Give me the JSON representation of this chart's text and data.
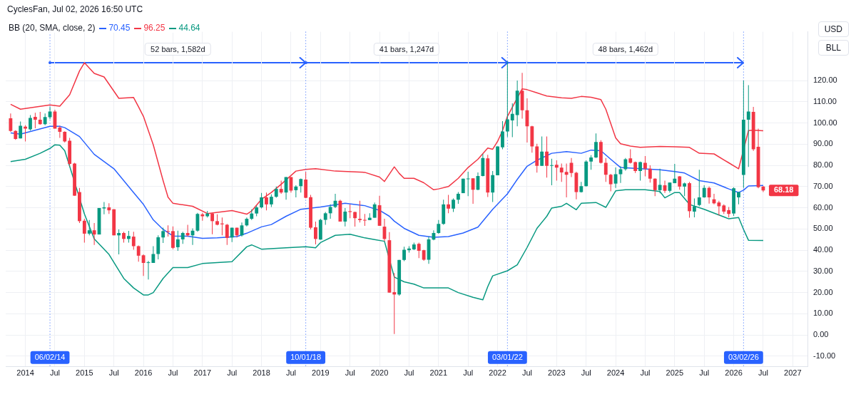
{
  "chart_data": {
    "type": "candlestick",
    "title": "CyclesFan, Jul 02, 2026 16:50 UTC",
    "legend_title": "BB (20, SMA, close, 2)",
    "legend": "top left",
    "grid": true,
    "x": [
      "2013-10",
      "2013-11",
      "2013-12",
      "2014-01",
      "2014-02",
      "2014-03",
      "2014-04",
      "2014-05",
      "2014-06",
      "2014-07",
      "2014-08",
      "2014-09",
      "2014-10",
      "2014-11",
      "2014-12",
      "2015-01",
      "2015-02",
      "2015-03",
      "2015-04",
      "2015-05",
      "2015-06",
      "2015-07",
      "2015-08",
      "2015-09",
      "2015-10",
      "2015-11",
      "2015-12",
      "2016-01",
      "2016-02",
      "2016-03",
      "2016-04",
      "2016-05",
      "2016-06",
      "2016-07",
      "2016-08",
      "2016-09",
      "2016-10",
      "2016-11",
      "2016-12",
      "2017-01",
      "2017-02",
      "2017-03",
      "2017-04",
      "2017-05",
      "2017-06",
      "2017-07",
      "2017-08",
      "2017-09",
      "2017-10",
      "2017-11",
      "2017-12",
      "2018-01",
      "2018-02",
      "2018-03",
      "2018-04",
      "2018-05",
      "2018-06",
      "2018-07",
      "2018-08",
      "2018-09",
      "2018-10",
      "2018-11",
      "2018-12",
      "2019-01",
      "2019-02",
      "2019-03",
      "2019-04",
      "2019-05",
      "2019-06",
      "2019-07",
      "2019-08",
      "2019-09",
      "2019-10",
      "2019-11",
      "2019-12",
      "2020-01",
      "2020-02",
      "2020-03",
      "2020-04",
      "2020-05",
      "2020-06",
      "2020-07",
      "2020-08",
      "2020-09",
      "2020-10",
      "2020-11",
      "2020-12",
      "2021-01",
      "2021-02",
      "2021-03",
      "2021-04",
      "2021-05",
      "2021-06",
      "2021-07",
      "2021-08",
      "2021-09",
      "2021-10",
      "2021-11",
      "2021-12",
      "2022-01",
      "2022-02",
      "2022-03",
      "2022-04",
      "2022-05",
      "2022-06",
      "2022-07",
      "2022-08",
      "2022-09",
      "2022-10",
      "2022-11",
      "2022-12",
      "2023-01",
      "2023-02",
      "2023-03",
      "2023-04",
      "2023-05",
      "2023-06",
      "2023-07",
      "2023-08",
      "2023-09",
      "2023-10",
      "2023-11",
      "2023-12",
      "2024-01",
      "2024-02",
      "2024-03",
      "2024-04",
      "2024-05",
      "2024-06",
      "2024-07",
      "2024-08",
      "2024-09",
      "2024-10",
      "2024-11",
      "2024-12",
      "2025-01",
      "2025-02",
      "2025-03",
      "2025-04",
      "2025-05",
      "2025-06",
      "2025-07",
      "2025-08",
      "2025-09",
      "2025-10",
      "2025-11",
      "2025-12",
      "2026-01",
      "2026-02",
      "2026-03",
      "2026-04",
      "2026-05",
      "2026-06",
      "2026-07"
    ],
    "ohlc": [
      [
        102.2,
        104.5,
        95.8,
        96.2
      ],
      [
        96.2,
        96.6,
        92,
        92.5
      ],
      [
        92.7,
        100.7,
        92.7,
        98.7
      ],
      [
        98.3,
        98.9,
        91.3,
        97.3
      ],
      [
        97,
        103.7,
        96.4,
        102.4
      ],
      [
        102.9,
        104.8,
        97.5,
        101.5
      ],
      [
        101.5,
        105.2,
        99.2,
        99.4
      ],
      [
        99.4,
        104.5,
        98.9,
        102.8
      ],
      [
        102.7,
        107.6,
        101.7,
        105.4
      ],
      [
        105.4,
        106.2,
        97.3,
        97.3
      ],
      [
        97.8,
        98.7,
        93,
        95.8
      ],
      [
        95.8,
        96.1,
        90.8,
        91.3
      ],
      [
        91.6,
        93,
        79.8,
        80.7
      ],
      [
        80.9,
        81.2,
        65.7,
        65.7
      ],
      [
        67.4,
        69.4,
        52.8,
        53.7
      ],
      [
        53.9,
        54.8,
        43.6,
        47.8
      ],
      [
        47.8,
        54.2,
        47,
        49.4
      ],
      [
        49.4,
        52.8,
        42.5,
        47.4
      ],
      [
        47.4,
        59.9,
        47.4,
        59.9
      ],
      [
        59.7,
        62.7,
        56.9,
        60.2
      ],
      [
        60.2,
        62.1,
        57.1,
        58.8
      ],
      [
        59.3,
        59.3,
        47,
        47
      ],
      [
        47,
        49.8,
        38,
        48.1
      ],
      [
        48.1,
        48.7,
        43.6,
        45.3
      ],
      [
        45.3,
        49.1,
        43.6,
        46.7
      ],
      [
        46.4,
        48.7,
        40.2,
        41.9
      ],
      [
        41.9,
        42.2,
        34.6,
        37.4
      ],
      [
        37.6,
        38,
        27.9,
        34
      ],
      [
        34,
        35,
        26.2,
        34.3
      ],
      [
        34,
        41.9,
        34,
        38.2
      ],
      [
        38.2,
        47,
        35.7,
        46.1
      ],
      [
        46,
        50.6,
        43.4,
        49
      ],
      [
        49,
        51.7,
        46.4,
        48.7
      ],
      [
        49,
        51.2,
        40.5,
        41.1
      ],
      [
        41.4,
        49.2,
        39.7,
        45.1
      ],
      [
        45.1,
        48.7,
        43,
        48.1
      ],
      [
        48.1,
        52,
        46.4,
        47
      ],
      [
        47,
        50.3,
        42.5,
        49.2
      ],
      [
        49.2,
        57.6,
        48.7,
        57.1
      ],
      [
        56.9,
        57.6,
        53.9,
        56
      ],
      [
        56,
        58.5,
        55.4,
        57.3
      ],
      [
        57.3,
        57.6,
        47.5,
        53.7
      ],
      [
        53.7,
        56.9,
        51.7,
        52
      ],
      [
        52.6,
        55.4,
        47,
        52.2
      ],
      [
        52,
        52.4,
        42.5,
        45.8
      ],
      [
        46,
        50.6,
        43.8,
        50.6
      ],
      [
        50.6,
        50.6,
        46,
        47
      ],
      [
        47,
        53.1,
        46.4,
        51.7
      ],
      [
        51.7,
        55.4,
        51.2,
        54.8
      ],
      [
        54.8,
        59.3,
        54.2,
        57.3
      ],
      [
        57.3,
        61,
        56,
        60.2
      ],
      [
        60.2,
        67,
        59.7,
        64.9
      ],
      [
        64.9,
        67.2,
        58.8,
        61.6
      ],
      [
        61.6,
        66.3,
        60.4,
        65.2
      ],
      [
        65.2,
        70,
        64.7,
        68.9
      ],
      [
        68.9,
        72.8,
        66.6,
        67.2
      ],
      [
        67.2,
        74.5,
        63.8,
        74.5
      ],
      [
        74.5,
        74.5,
        67.2,
        68.1
      ],
      [
        68.3,
        70.6,
        64.9,
        70
      ],
      [
        70.2,
        73.8,
        67.2,
        73.6
      ],
      [
        73.3,
        76.9,
        64.5,
        64.7
      ],
      [
        65,
        66.1,
        49.8,
        50.6
      ],
      [
        50.8,
        53.5,
        42.7,
        45.3
      ],
      [
        45,
        54.8,
        44.9,
        54.3
      ],
      [
        54.3,
        58,
        52,
        57.4
      ],
      [
        57.4,
        61.6,
        54.8,
        60.4
      ],
      [
        60.4,
        66.6,
        59.9,
        63.3
      ],
      [
        63.3,
        63.8,
        53.5,
        53.5
      ],
      [
        53.5,
        59.9,
        51.2,
        58.2
      ],
      [
        58.4,
        61.6,
        55.1,
        58
      ],
      [
        58,
        58.2,
        51.1,
        55.1
      ],
      [
        54.8,
        63.3,
        53.1,
        54.2
      ],
      [
        54.3,
        57.1,
        51.5,
        54.2
      ],
      [
        54.2,
        57.4,
        54.2,
        55.3
      ],
      [
        55.3,
        62.5,
        55.3,
        61.6
      ],
      [
        61.2,
        65.7,
        51.5,
        51.5
      ],
      [
        51.1,
        54.8,
        44.2,
        45.3
      ],
      [
        44.7,
        48.5,
        20,
        20
      ],
      [
        20.2,
        29.2,
        0.5,
        19.1
      ],
      [
        19.1,
        35.4,
        18.5,
        35.4
      ],
      [
        35.4,
        41.6,
        34.8,
        40.2
      ],
      [
        40,
        41.9,
        38.9,
        40.8
      ],
      [
        40.4,
        43.6,
        40,
        42.7
      ],
      [
        43,
        43.6,
        36.3,
        39.7
      ],
      [
        40,
        40.2,
        35,
        35.5
      ],
      [
        35.5,
        46.4,
        33.6,
        45.1
      ],
      [
        45,
        49.4,
        44.7,
        48.1
      ],
      [
        48.1,
        54.2,
        47.8,
        52.4
      ],
      [
        52.4,
        63.8,
        52,
        61.6
      ],
      [
        61.6,
        66.1,
        57.4,
        59.6
      ],
      [
        59.6,
        64.4,
        58,
        63.8
      ],
      [
        63.8,
        67.4,
        61.9,
        66.6
      ],
      [
        66.9,
        73.7,
        66.9,
        73.7
      ],
      [
        73.6,
        77,
        65.5,
        73.8
      ],
      [
        73.9,
        73.9,
        61.9,
        68.5
      ],
      [
        68.5,
        76.7,
        68.3,
        75
      ],
      [
        75,
        85.4,
        74.8,
        83.5
      ],
      [
        83.3,
        85,
        65.1,
        67.2
      ],
      [
        67.2,
        77.3,
        62.7,
        75.4
      ],
      [
        75.3,
        88.9,
        75.3,
        88.9
      ],
      [
        88.5,
        100.9,
        87.6,
        96
      ],
      [
        96,
        129,
        93.5,
        101.7
      ],
      [
        101.2,
        109.3,
        93.3,
        104.3
      ],
      [
        103.7,
        120,
        98.4,
        115.2
      ],
      [
        115.2,
        123.6,
        102,
        106
      ],
      [
        106,
        111.6,
        90.8,
        98.4
      ],
      [
        98.4,
        98.7,
        86,
        88.9
      ],
      [
        88.9,
        90.2,
        76.6,
        79.8
      ],
      [
        79.8,
        93.6,
        79.8,
        86.5
      ],
      [
        86.5,
        93.6,
        74.2,
        79.8
      ],
      [
        79.8,
        83.1,
        70.6,
        80.1
      ],
      [
        80.3,
        82.4,
        72.8,
        78.9
      ],
      [
        78.9,
        80.9,
        72.2,
        76.7
      ],
      [
        76.9,
        80.9,
        64.9,
        75.6
      ],
      [
        81.2,
        83.5,
        74.5,
        76.4
      ],
      [
        76.5,
        77,
        64,
        67.4
      ],
      [
        67.4,
        72.2,
        67.2,
        70.2
      ],
      [
        70.2,
        82.4,
        70,
        81.8
      ],
      [
        81.8,
        84.8,
        77.9,
        83.7
      ],
      [
        83.7,
        95.1,
        83.5,
        91
      ],
      [
        91,
        91.9,
        80.9,
        81.2
      ],
      [
        81.2,
        83.5,
        72.2,
        75.6
      ],
      [
        75.6,
        76,
        67.8,
        71.1
      ],
      [
        71.4,
        79,
        69.4,
        75.8
      ],
      [
        75.8,
        79.6,
        71.7,
        78.2
      ],
      [
        78.2,
        83.5,
        77.5,
        82.9
      ],
      [
        83.3,
        87.6,
        80.9,
        81.2
      ],
      [
        81.5,
        81.8,
        76.4,
        77.3
      ],
      [
        77.3,
        81.8,
        72.8,
        81.5
      ],
      [
        81.2,
        84.4,
        74.8,
        78.4
      ],
      [
        78.4,
        80,
        71.9,
        73.7
      ],
      [
        73.7,
        73.9,
        65.5,
        68.3
      ],
      [
        68.3,
        78.4,
        66.8,
        70.8
      ],
      [
        70.6,
        72.8,
        67,
        68
      ],
      [
        68,
        71.9,
        67.2,
        71.9
      ],
      [
        71.6,
        80.7,
        71.6,
        73.7
      ],
      [
        74.8,
        75,
        68.5,
        70
      ],
      [
        70,
        71.9,
        65.5,
        71.5
      ],
      [
        71.6,
        72.2,
        55.3,
        58.4
      ],
      [
        58.2,
        64.4,
        55.5,
        60.7
      ],
      [
        61.3,
        77.9,
        60.7,
        64.9
      ],
      [
        64.9,
        70.6,
        64.7,
        69.4
      ],
      [
        69.4,
        70,
        62,
        64.9
      ],
      [
        64,
        66.6,
        61.6,
        62.1
      ],
      [
        62.5,
        63.3,
        56.4,
        60.7
      ],
      [
        61.1,
        61.6,
        57.1,
        58.2
      ],
      [
        58.9,
        60.4,
        55.4,
        57.1
      ],
      [
        57.3,
        69.7,
        56.2,
        69.2
      ],
      [
        64.9,
        67.4,
        61.6,
        67.4
      ],
      [
        75.5,
        120,
        69.4,
        101.5
      ],
      [
        101.5,
        117.8,
        79.3,
        105.4
      ],
      [
        105.2,
        107.6,
        86.8,
        87.6
      ],
      [
        88.8,
        97.3,
        69.2,
        69.7
      ],
      [
        70,
        70.3,
        67.4,
        68.18
      ]
    ],
    "colors": [
      "#f23645",
      "#f23645",
      "#089981",
      "#f23645",
      "#089981",
      "#f23645",
      "#f23645",
      "#089981",
      "#089981",
      "#f23645",
      "#f23645",
      "#f23645",
      "#f23645",
      "#f23645",
      "#f23645",
      "#f23645",
      "#089981",
      "#f23645",
      "#089981",
      "#089981",
      "#f23645",
      "#f23645",
      "#089981",
      "#f23645",
      "#089981",
      "#f23645",
      "#f23645",
      "#f23645",
      "#089981",
      "#089981",
      "#089981",
      "#089981",
      "#f23645",
      "#f23645",
      "#089981",
      "#089981",
      "#f23645",
      "#089981",
      "#089981",
      "#f23645",
      "#089981",
      "#f23645",
      "#f23645",
      "#f23645",
      "#f23645",
      "#089981",
      "#f23645",
      "#089981",
      "#089981",
      "#089981",
      "#089981",
      "#089981",
      "#f23645",
      "#089981",
      "#089981",
      "#f23645",
      "#089981",
      "#f23645",
      "#089981",
      "#089981",
      "#f23645",
      "#f23645",
      "#f23645",
      "#089981",
      "#089981",
      "#089981",
      "#089981",
      "#f23645",
      "#089981",
      "#f23645",
      "#f23645",
      "#f23645",
      "#f23645",
      "#089981",
      "#089981",
      "#f23645",
      "#f23645",
      "#f23645",
      "#f23645",
      "#089981",
      "#089981",
      "#089981",
      "#089981",
      "#f23645",
      "#f23645",
      "#089981",
      "#089981",
      "#089981",
      "#089981",
      "#f23645",
      "#089981",
      "#089981",
      "#089981",
      "#089981",
      "#f23645",
      "#089981",
      "#089981",
      "#f23645",
      "#089981",
      "#089981",
      "#089981",
      "#089981",
      "#089981",
      "#089981",
      "#f23645",
      "#f23645",
      "#f23645",
      "#f23645",
      "#089981",
      "#f23645",
      "#089981",
      "#f23645",
      "#f23645",
      "#f23645",
      "#f23645",
      "#f23645",
      "#089981",
      "#089981",
      "#089981",
      "#089981",
      "#f23645",
      "#f23645",
      "#f23645",
      "#089981",
      "#089981",
      "#089981",
      "#f23645",
      "#f23645",
      "#089981",
      "#f23645",
      "#f23645",
      "#f23645",
      "#089981",
      "#f23645",
      "#089981",
      "#089981",
      "#f23645",
      "#089981",
      "#f23645",
      "#089981",
      "#089981",
      "#089981",
      "#f23645",
      "#f23645",
      "#f23645",
      "#f23645",
      "#f23645",
      "#089981",
      "#089981",
      "#089981",
      "#089981",
      "#f23645",
      "#f23645",
      "#f23645"
    ],
    "series": [
      {
        "type": "line",
        "name": "70.45",
        "color": "#2962ff",
        "x": [
          "2013-10",
          "2013-12",
          "2014-03",
          "2014-06",
          "2014-08",
          "2014-09",
          "2014-12",
          "2015-03",
          "2015-07",
          "2015-11",
          "2016-01",
          "2016-03",
          "2016-05",
          "2016-07",
          "2016-10",
          "2017-01",
          "2017-04",
          "2017-08",
          "2017-10",
          "2018-01",
          "2018-03",
          "2018-06",
          "2018-09",
          "2019-01",
          "2019-06",
          "2019-10",
          "2020-01",
          "2020-03",
          "2020-04",
          "2020-06",
          "2020-09",
          "2020-12",
          "2021-03",
          "2021-06",
          "2021-09",
          "2021-12",
          "2022-03",
          "2022-05",
          "2022-07",
          "2022-09",
          "2022-12",
          "2023-03",
          "2023-06",
          "2023-08",
          "2023-10",
          "2023-12",
          "2024-02",
          "2024-06",
          "2024-10",
          "2025-01",
          "2025-03",
          "2025-06",
          "2025-09",
          "2025-12",
          "2026-02",
          "2026-03",
          "2026-04",
          "2026-07"
        ],
        "values": [
          95.3,
          94.7,
          96.6,
          98.4,
          98.4,
          97.8,
          93.6,
          85.2,
          78.4,
          67.2,
          61.6,
          54.3,
          49.8,
          46.7,
          46.6,
          45.6,
          45.8,
          46.4,
          48,
          51,
          52.1,
          56,
          59.3,
          60.4,
          62.1,
          61,
          58.8,
          56,
          53.7,
          50.3,
          47,
          46.1,
          46.4,
          48.1,
          50.9,
          59.3,
          66.6,
          73.4,
          79.6,
          82.4,
          85.7,
          86.5,
          85.7,
          87.2,
          86.9,
          82.9,
          79,
          78.4,
          77.9,
          77.1,
          76.4,
          72.8,
          71.7,
          68.9,
          67.2,
          68.3,
          70.3,
          70.5
        ]
      },
      {
        "type": "line",
        "name": "96.25",
        "color": "#f23645",
        "x": [
          "2013-10",
          "2013-12",
          "2014-06",
          "2014-08",
          "2014-10",
          "2014-12",
          "2015-01",
          "2015-03",
          "2015-05",
          "2015-08",
          "2015-11",
          "2015-12",
          "2016-01",
          "2016-03",
          "2016-05",
          "2016-06",
          "2016-07",
          "2016-11",
          "2017-02",
          "2017-07",
          "2017-10",
          "2017-11",
          "2018-01",
          "2018-03",
          "2018-05",
          "2018-08",
          "2018-10",
          "2018-12",
          "2019-04",
          "2019-10",
          "2020-01",
          "2020-02",
          "2020-04",
          "2020-05",
          "2020-06",
          "2020-08",
          "2020-10",
          "2020-12",
          "2021-01",
          "2021-03",
          "2021-05",
          "2021-07",
          "2021-09",
          "2021-11",
          "2021-12",
          "2022-01",
          "2022-02",
          "2022-03",
          "2022-06",
          "2022-07",
          "2022-09",
          "2022-11",
          "2023-02",
          "2023-04",
          "2023-06",
          "2023-08",
          "2023-10",
          "2023-11",
          "2023-12",
          "2024-01",
          "2024-02",
          "2024-04",
          "2024-06",
          "2024-10",
          "2025-01",
          "2025-04",
          "2025-06",
          "2025-09",
          "2025-12",
          "2026-02",
          "2026-04",
          "2026-05",
          "2026-07"
        ],
        "values": [
          108.8,
          106.5,
          108.5,
          107.9,
          113.3,
          124.5,
          128.4,
          123.4,
          121.7,
          111.6,
          112,
          107.6,
          103.1,
          89.7,
          72.8,
          65,
          62.1,
          60.7,
          57.3,
          58.7,
          57,
          58.5,
          64,
          67.2,
          71.1,
          77.3,
          78.1,
          78.4,
          77.3,
          76.7,
          74.5,
          72.4,
          79.3,
          76.2,
          73.9,
          73.9,
          71.8,
          68.5,
          68.9,
          70,
          73.9,
          79,
          82.9,
          88.2,
          87.6,
          91.3,
          96.4,
          103.1,
          116.1,
          115.7,
          114.2,
          112.7,
          111.9,
          111.6,
          112.5,
          112.1,
          111,
          106.5,
          99.8,
          93,
          90.2,
          89.1,
          88.5,
          88.9,
          88.8,
          88.5,
          85.7,
          85.4,
          81.2,
          78.4,
          96.4,
          96.6,
          96.3
        ]
      },
      {
        "type": "line",
        "name": "44.64",
        "color": "#089981",
        "x": [
          "2013-10",
          "2014-01",
          "2014-04",
          "2014-06",
          "2014-07",
          "2014-08",
          "2014-09",
          "2014-10",
          "2015-01",
          "2015-03",
          "2015-06",
          "2015-09",
          "2015-11",
          "2016-01",
          "2016-02",
          "2016-03",
          "2016-05",
          "2016-07",
          "2016-10",
          "2017-01",
          "2017-07",
          "2017-10",
          "2017-11",
          "2018-01",
          "2018-06",
          "2018-10",
          "2018-12",
          "2019-01",
          "2019-04",
          "2019-07",
          "2019-10",
          "2019-12",
          "2020-02",
          "2020-04",
          "2020-06",
          "2020-08",
          "2020-10",
          "2021-03",
          "2021-05",
          "2021-08",
          "2021-10",
          "2021-11",
          "2021-12",
          "2022-03",
          "2022-05",
          "2022-07",
          "2022-09",
          "2022-11",
          "2022-12",
          "2023-02",
          "2023-03",
          "2023-05",
          "2023-06",
          "2023-09",
          "2023-11",
          "2024-01",
          "2024-03",
          "2024-07",
          "2024-10",
          "2024-11",
          "2025-01",
          "2025-02",
          "2025-04",
          "2025-07",
          "2025-12",
          "2026-02",
          "2026-03",
          "2026-04",
          "2026-07"
        ],
        "values": [
          81.8,
          82.9,
          85.7,
          88,
          89.7,
          89.5,
          86.9,
          79.6,
          57.1,
          45.3,
          38,
          26.7,
          22.2,
          18.9,
          18.9,
          20,
          26.7,
          31.8,
          31.8,
          33.7,
          34.6,
          41.6,
          42.5,
          40.5,
          41.1,
          41.6,
          41.1,
          43.6,
          47,
          47.5,
          45.8,
          45,
          44.2,
          27.3,
          25.1,
          24,
          22.2,
          22.2,
          20,
          17.8,
          16.6,
          22.8,
          27.9,
          30.3,
          33.1,
          41.3,
          50.3,
          56,
          59.9,
          60.7,
          62.1,
          59.1,
          62.1,
          62.5,
          60.2,
          68,
          68.5,
          68.5,
          67.7,
          64.7,
          67.2,
          67.2,
          61.6,
          59.3,
          54.8,
          55.4,
          49.8,
          44.7,
          44.6
        ]
      }
    ],
    "xlim": [
      "2013-09",
      "2027-04"
    ],
    "xticks": [
      {
        "value": "2014-01",
        "label": "2014"
      },
      {
        "value": "2014-07",
        "label": "Jul"
      },
      {
        "value": "2015-01",
        "label": "2015"
      },
      {
        "value": "2015-07",
        "label": "Jul"
      },
      {
        "value": "2016-01",
        "label": "2016"
      },
      {
        "value": "2016-07",
        "label": "Jul"
      },
      {
        "value": "2017-01",
        "label": "2017"
      },
      {
        "value": "2017-07",
        "label": "Jul"
      },
      {
        "value": "2018-01",
        "label": "2018"
      },
      {
        "value": "2018-07",
        "label": "Jul"
      },
      {
        "value": "2019-01",
        "label": "2019"
      },
      {
        "value": "2019-07",
        "label": "Jul"
      },
      {
        "value": "2020-01",
        "label": "2020"
      },
      {
        "value": "2020-07",
        "label": "Jul"
      },
      {
        "value": "2021-01",
        "label": "2021"
      },
      {
        "value": "2021-07",
        "label": "Jul"
      },
      {
        "value": "2022-01",
        "label": "2022"
      },
      {
        "value": "2022-07",
        "label": "Jul"
      },
      {
        "value": "2023-01",
        "label": "2023"
      },
      {
        "value": "2023-07",
        "label": "Jul"
      },
      {
        "value": "2024-01",
        "label": "2024"
      },
      {
        "value": "2024-07",
        "label": "Jul"
      },
      {
        "value": "2025-01",
        "label": "2025"
      },
      {
        "value": "2025-07",
        "label": "Jul"
      },
      {
        "value": "2026-01",
        "label": "2026"
      },
      {
        "value": "2026-07",
        "label": "Jul"
      },
      {
        "value": "2027-01",
        "label": "2027"
      }
    ],
    "ylim": [
      -15,
      143
    ],
    "yticks": [
      {
        "value": -10,
        "label": "-10.00"
      },
      {
        "value": 0,
        "label": "0.00"
      },
      {
        "value": 10,
        "label": "10.00"
      },
      {
        "value": 20,
        "label": "20.00"
      },
      {
        "value": 30,
        "label": "30.00"
      },
      {
        "value": 40,
        "label": "40.00"
      },
      {
        "value": 50,
        "label": "50.00"
      },
      {
        "value": 60,
        "label": "60.00"
      },
      {
        "value": 70,
        "label": "70.00"
      },
      {
        "value": 80,
        "label": "80.00"
      },
      {
        "value": 90,
        "label": "90.00"
      },
      {
        "value": 100,
        "label": "100.00"
      },
      {
        "value": 110,
        "label": "110.00"
      },
      {
        "value": 120,
        "label": "120.00"
      }
    ],
    "ref_lines": [
      {
        "axis": "x",
        "value": "2014-06",
        "label": "06/02/14",
        "color": "#2962ff",
        "line_style": "dotted"
      },
      {
        "axis": "x",
        "value": "2018-10",
        "label": "10/01/18",
        "color": "#2962ff",
        "line_style": "dotted"
      },
      {
        "axis": "x",
        "value": "2022-03",
        "label": "03/01/22",
        "color": "#2962ff",
        "line_style": "dotted"
      },
      {
        "axis": "x",
        "value": "2026-03",
        "label": "03/02/26",
        "color": "#2962ff",
        "line_style": "dotted"
      }
    ],
    "annotations": [
      "USD",
      "BLL",
      "52 bars, 1,582d",
      "41 bars, 1,247d",
      "48 bars, 1,462d",
      {
        "text": "68.18",
        "x": "2026-07",
        "y": 68.18
      }
    ]
  }
}
